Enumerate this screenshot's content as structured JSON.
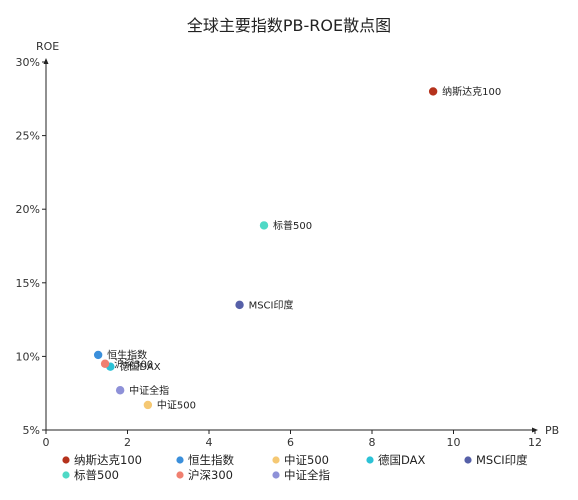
{
  "chart_data": {
    "type": "scatter",
    "title": "全球主要指数PB-ROE散点图",
    "xlabel": "PB",
    "ylabel": "ROE",
    "xlim": [
      0,
      12
    ],
    "ylim": [
      5,
      30
    ],
    "x_ticks": [
      "0",
      "2",
      "4",
      "6",
      "8",
      "10",
      "12"
    ],
    "y_ticks": [
      "5%",
      "10%",
      "15%",
      "20%",
      "25%",
      "30%"
    ],
    "grid": false,
    "legend_position": "bottom",
    "series": [
      {
        "name": "纳斯达克100",
        "color": "#b5321c",
        "x": 9.5,
        "y": 28.0
      },
      {
        "name": "恒生指数",
        "color": "#3b8fdb",
        "x": 1.28,
        "y": 10.1
      },
      {
        "name": "中证500",
        "color": "#f5c873",
        "x": 2.5,
        "y": 6.7
      },
      {
        "name": "德国DAX",
        "color": "#2cc2d6",
        "x": 1.58,
        "y": 9.3
      },
      {
        "name": "MSCI印度",
        "color": "#5660a8",
        "x": 4.75,
        "y": 13.5
      },
      {
        "name": "标普500",
        "color": "#4fd9c6",
        "x": 5.35,
        "y": 18.9
      },
      {
        "name": "沪深300",
        "color": "#f08070",
        "x": 1.45,
        "y": 9.5
      },
      {
        "name": "中证全指",
        "color": "#8e91d8",
        "x": 1.82,
        "y": 7.7
      }
    ]
  }
}
